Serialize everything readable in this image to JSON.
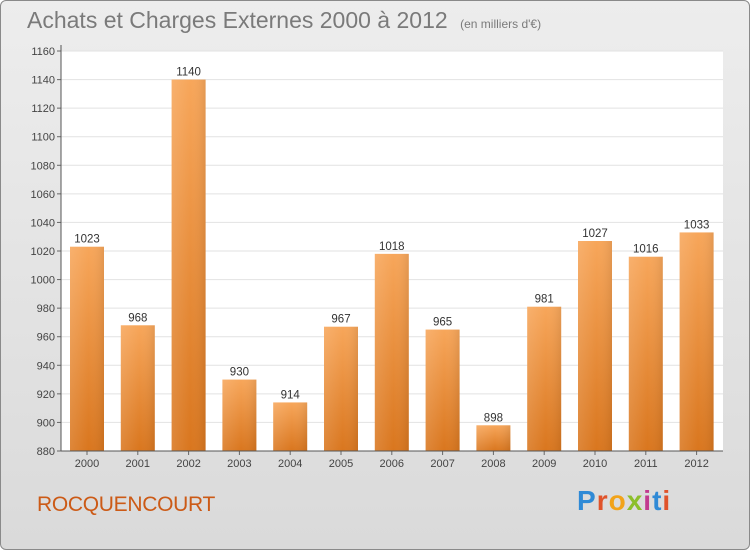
{
  "chart_data": {
    "type": "bar",
    "title": "Achats et Charges Externes 2000 à 2012",
    "subtitle": "(en milliers d'€)",
    "xlabel": "",
    "ylabel": "",
    "categories": [
      "2000",
      "2001",
      "2002",
      "2003",
      "2004",
      "2005",
      "2006",
      "2007",
      "2008",
      "2009",
      "2010",
      "2011",
      "2012"
    ],
    "values": [
      1023,
      968,
      1140,
      930,
      914,
      967,
      1018,
      965,
      898,
      981,
      1027,
      1016,
      1033
    ],
    "ylim": [
      880,
      1160
    ],
    "yticks": [
      880,
      900,
      920,
      940,
      960,
      980,
      1000,
      1020,
      1040,
      1060,
      1080,
      1100,
      1120,
      1140,
      1160
    ],
    "grid": true,
    "legend": "none",
    "bar_color": "#f0892f"
  },
  "footer": {
    "commune": "ROCQUENCOURT"
  },
  "logo": {
    "letters": [
      {
        "char": "P",
        "color": "#2f8ad6"
      },
      {
        "char": "r",
        "color": "#e0532a"
      },
      {
        "char": "o",
        "color": "#f2a319"
      },
      {
        "char": "x",
        "color": "#8cbf2a"
      },
      {
        "char": "i",
        "color": "#c23a8f"
      },
      {
        "char": "t",
        "color": "#2f8ad6"
      },
      {
        "char": "i",
        "color": "#e0532a"
      }
    ]
  }
}
